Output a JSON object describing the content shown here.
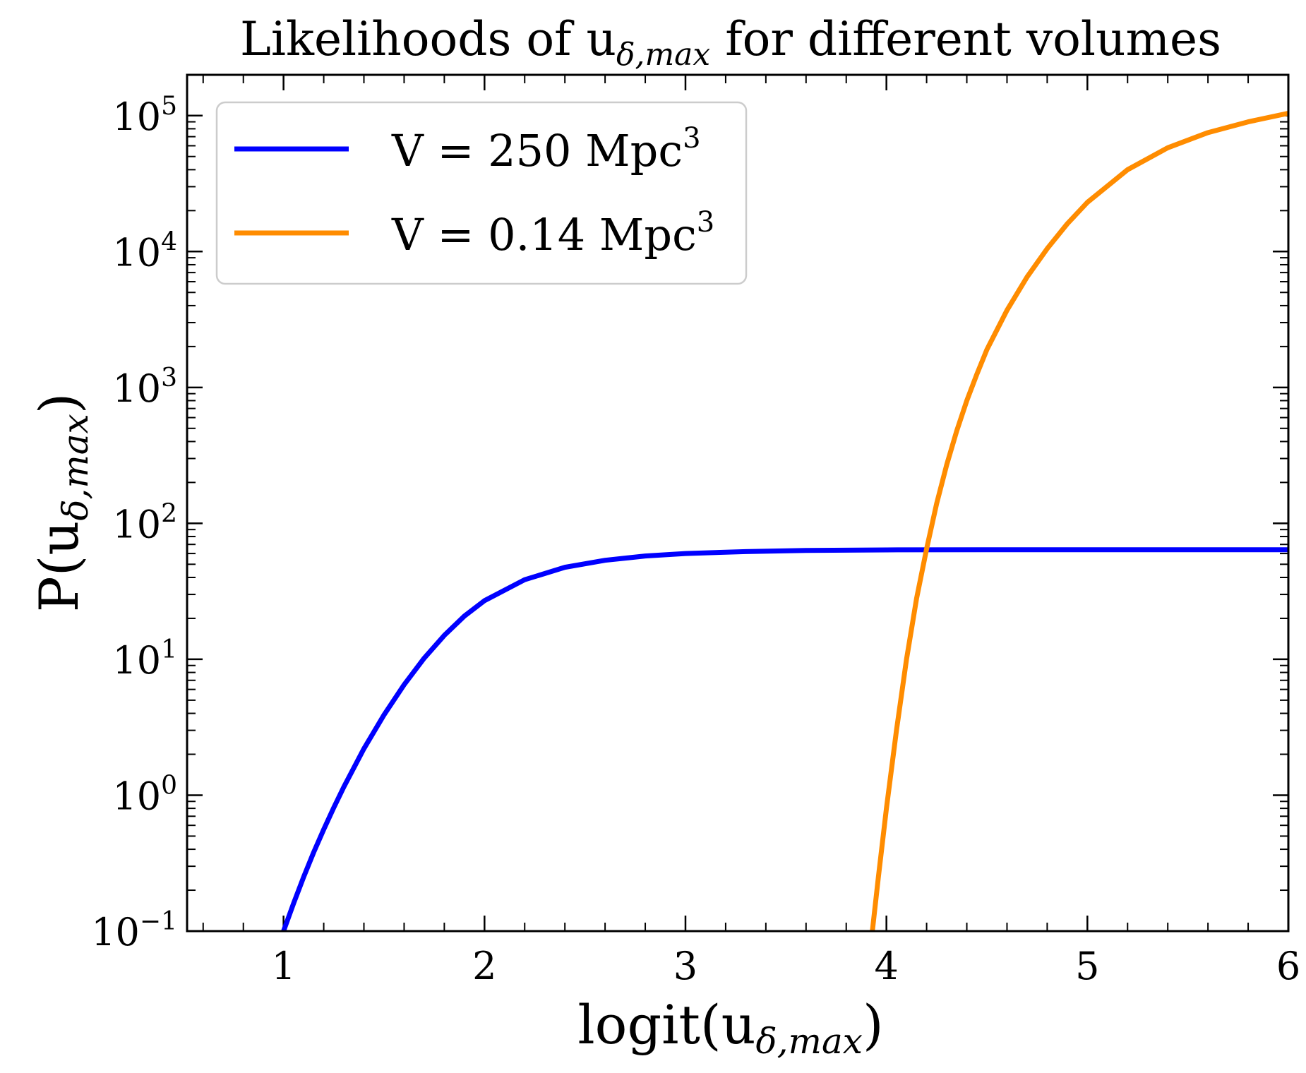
{
  "chart_data": {
    "type": "line",
    "title": {
      "main": "Likelihoods of u",
      "sub": "δ,max",
      "rest": " for different volumes"
    },
    "xlabel": {
      "main": "logit(u",
      "sub": "δ,max",
      "close": ")"
    },
    "ylabel": {
      "main": "P(u",
      "sub": "δ,max",
      "close": ")"
    },
    "xlim": [
      0.52,
      6.0
    ],
    "ylim_log10": [
      -1,
      5.3
    ],
    "yscale": "log",
    "x_ticks": [
      {
        "value": 1,
        "label": "1"
      },
      {
        "value": 2,
        "label": "2"
      },
      {
        "value": 3,
        "label": "3"
      },
      {
        "value": 4,
        "label": "4"
      },
      {
        "value": 5,
        "label": "5"
      },
      {
        "value": 6,
        "label": "6"
      }
    ],
    "y_ticks": [
      {
        "exp": -1,
        "base": "10",
        "sup": "−1"
      },
      {
        "exp": 0,
        "base": "10",
        "sup": "0"
      },
      {
        "exp": 1,
        "base": "10",
        "sup": "1"
      },
      {
        "exp": 2,
        "base": "10",
        "sup": "2"
      },
      {
        "exp": 3,
        "base": "10",
        "sup": "3"
      },
      {
        "exp": 4,
        "base": "10",
        "sup": "4"
      },
      {
        "exp": 5,
        "base": "10",
        "sup": "5"
      }
    ],
    "grid": false,
    "legend_position": "top-left",
    "series": [
      {
        "name": "V = 250 Mpc",
        "name_sup": "3",
        "color": "#0000ff",
        "points": [
          [
            1.0,
            0.1
          ],
          [
            1.05,
            0.16
          ],
          [
            1.1,
            0.25
          ],
          [
            1.15,
            0.38
          ],
          [
            1.2,
            0.56
          ],
          [
            1.25,
            0.81
          ],
          [
            1.3,
            1.15
          ],
          [
            1.4,
            2.2
          ],
          [
            1.5,
            3.9
          ],
          [
            1.6,
            6.5
          ],
          [
            1.7,
            10.2
          ],
          [
            1.8,
            15.0
          ],
          [
            1.9,
            20.8
          ],
          [
            2.0,
            27.0
          ],
          [
            2.2,
            38.5
          ],
          [
            2.4,
            47.5
          ],
          [
            2.6,
            53.5
          ],
          [
            2.8,
            57.5
          ],
          [
            3.0,
            60.0
          ],
          [
            3.3,
            62.0
          ],
          [
            3.6,
            63.2
          ],
          [
            4.0,
            63.8
          ],
          [
            4.5,
            64.0
          ],
          [
            5.0,
            64.0
          ],
          [
            6.0,
            64.0
          ]
        ]
      },
      {
        "name": "V = 0.14 Mpc",
        "name_sup": "3",
        "color": "#ff8c00",
        "points": [
          [
            3.93,
            0.1
          ],
          [
            3.96,
            0.25
          ],
          [
            4.0,
            0.8
          ],
          [
            4.05,
            3.0
          ],
          [
            4.1,
            10.0
          ],
          [
            4.15,
            28.0
          ],
          [
            4.2,
            65.0
          ],
          [
            4.25,
            140.0
          ],
          [
            4.3,
            270.0
          ],
          [
            4.35,
            480.0
          ],
          [
            4.4,
            800.0
          ],
          [
            4.45,
            1250.0
          ],
          [
            4.5,
            1900.0
          ],
          [
            4.6,
            3700.0
          ],
          [
            4.7,
            6500.0
          ],
          [
            4.8,
            10500.0
          ],
          [
            4.9,
            16000.0
          ],
          [
            5.0,
            23000.0
          ],
          [
            5.2,
            40000.0
          ],
          [
            5.4,
            58000.0
          ],
          [
            5.6,
            75000.0
          ],
          [
            5.8,
            90000.0
          ],
          [
            6.0,
            104000.0
          ]
        ]
      }
    ]
  }
}
